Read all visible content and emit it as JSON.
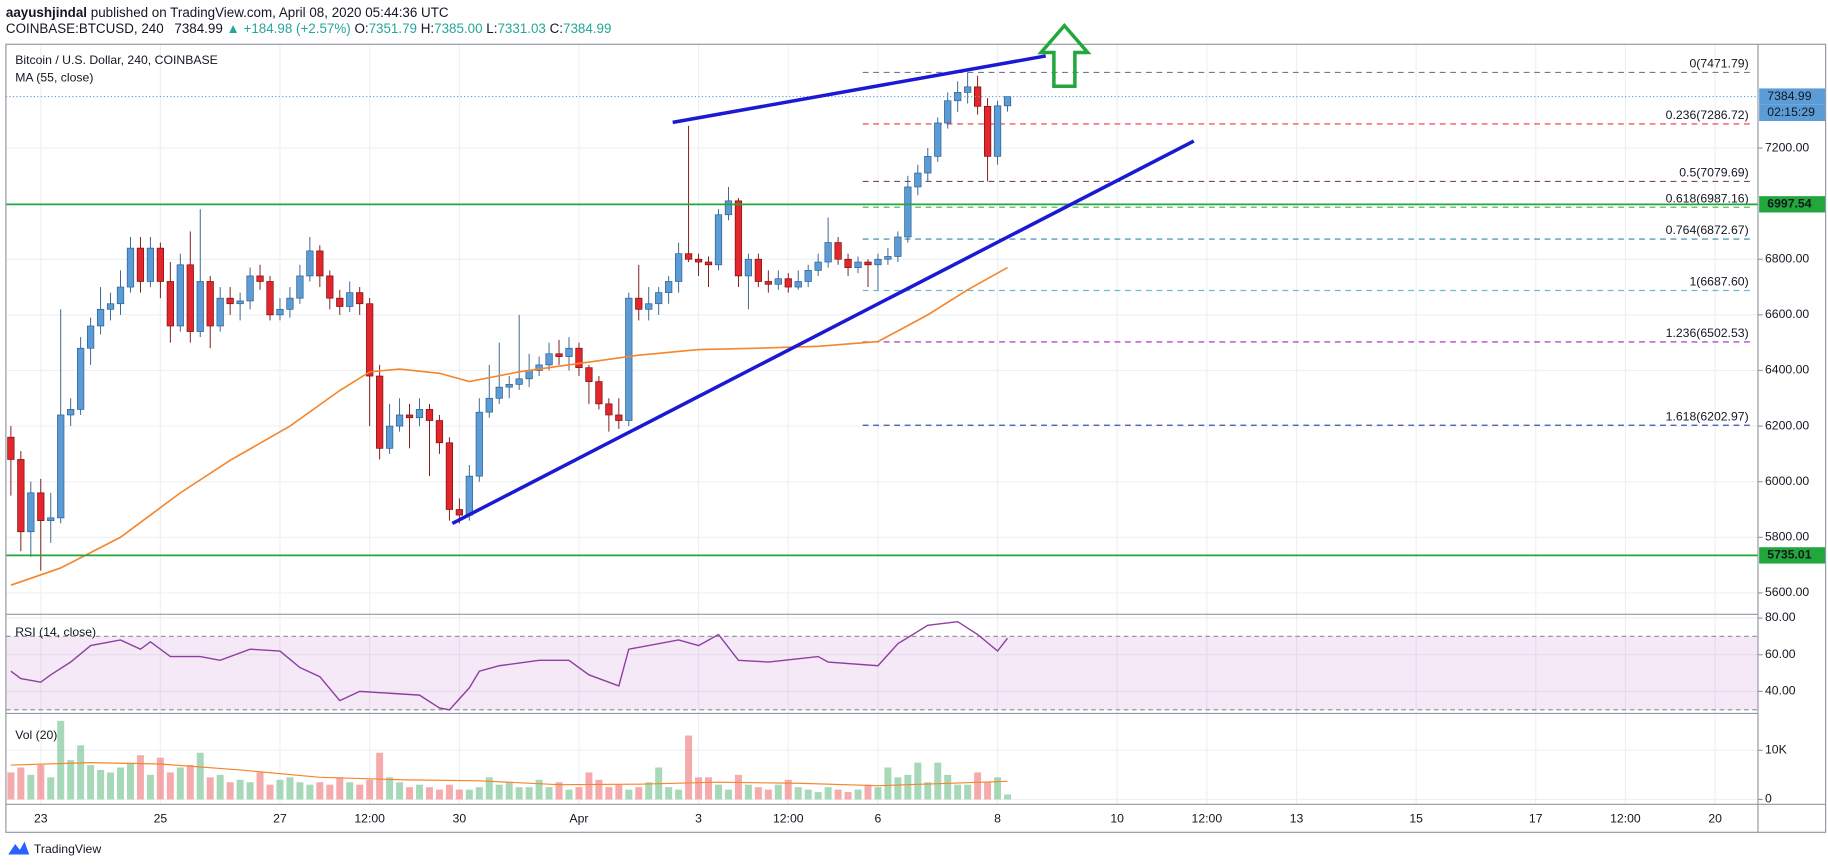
{
  "header": {
    "author": "aayushjindal",
    "published": "published on TradingView.com, April 08, 2020 05:44:36 UTC",
    "symbol": "COINBASE:BTCUSD, 240",
    "price": "7384.99",
    "change": "▲ +184.98 (+2.57%)",
    "ohlc_labels": [
      "O:",
      "H:",
      "L:",
      "C:"
    ],
    "ohlc_values": [
      "7351.79",
      "7385.00",
      "7331.03",
      "7384.99"
    ]
  },
  "chart_data": [
    {
      "type": "candlestick",
      "title": "Bitcoin / U.S. Dollar, 240, COINBASE",
      "x": [
        -3,
        -2,
        -1,
        0,
        1,
        2,
        3,
        4,
        5,
        6,
        7,
        8,
        9,
        10,
        11,
        12,
        13,
        14,
        15,
        16,
        17,
        18,
        19,
        20,
        21,
        22,
        23,
        24,
        25,
        26,
        27,
        28,
        29,
        30,
        31,
        32,
        33,
        34,
        35,
        36,
        37,
        38,
        39,
        40,
        41,
        42,
        43,
        44,
        45,
        46,
        47,
        48,
        49,
        50,
        51,
        52,
        53,
        54,
        55,
        56,
        57,
        58,
        59,
        60,
        61,
        62,
        63,
        64,
        65,
        66,
        67,
        68,
        69,
        70,
        71,
        72,
        73,
        74,
        75,
        76,
        77,
        78,
        79,
        80,
        81,
        82,
        83,
        84,
        85,
        86,
        87,
        88,
        89,
        90,
        91,
        92,
        93,
        94,
        95,
        96,
        97
      ],
      "ohlc": [
        [
          6160,
          6200,
          5950,
          6080
        ],
        [
          6080,
          6110,
          5750,
          5820
        ],
        [
          5820,
          6000,
          5730,
          5960
        ],
        [
          5960,
          6010,
          5680,
          5860
        ],
        [
          5860,
          5960,
          5780,
          5870
        ],
        [
          5870,
          6620,
          5850,
          6240
        ],
        [
          6240,
          6300,
          6200,
          6260
        ],
        [
          6260,
          6520,
          6240,
          6480
        ],
        [
          6480,
          6590,
          6420,
          6560
        ],
        [
          6560,
          6700,
          6530,
          6620
        ],
        [
          6620,
          6680,
          6580,
          6640
        ],
        [
          6640,
          6760,
          6600,
          6700
        ],
        [
          6700,
          6880,
          6680,
          6840
        ],
        [
          6840,
          6880,
          6680,
          6720
        ],
        [
          6720,
          6880,
          6700,
          6840
        ],
        [
          6840,
          6860,
          6660,
          6720
        ],
        [
          6720,
          6790,
          6500,
          6560
        ],
        [
          6560,
          6820,
          6540,
          6780
        ],
        [
          6780,
          6900,
          6500,
          6540
        ],
        [
          6540,
          6980,
          6520,
          6720
        ],
        [
          6720,
          6740,
          6480,
          6560
        ],
        [
          6560,
          6700,
          6540,
          6660
        ],
        [
          6660,
          6700,
          6600,
          6640
        ],
        [
          6640,
          6680,
          6580,
          6650
        ],
        [
          6650,
          6770,
          6620,
          6740
        ],
        [
          6740,
          6780,
          6690,
          6720
        ],
        [
          6720,
          6740,
          6580,
          6600
        ],
        [
          6600,
          6660,
          6580,
          6620
        ],
        [
          6620,
          6700,
          6590,
          6660
        ],
        [
          6660,
          6780,
          6640,
          6740
        ],
        [
          6740,
          6880,
          6720,
          6830
        ],
        [
          6830,
          6850,
          6700,
          6740
        ],
        [
          6740,
          6760,
          6620,
          6660
        ],
        [
          6660,
          6690,
          6600,
          6630
        ],
        [
          6630,
          6720,
          6610,
          6680
        ],
        [
          6680,
          6700,
          6600,
          6640
        ],
        [
          6640,
          6660,
          6200,
          6380
        ],
        [
          6380,
          6420,
          6080,
          6120
        ],
        [
          6120,
          6280,
          6100,
          6200
        ],
        [
          6200,
          6300,
          6180,
          6240
        ],
        [
          6240,
          6280,
          6120,
          6230
        ],
        [
          6230,
          6300,
          6200,
          6260
        ],
        [
          6260,
          6280,
          6020,
          6220
        ],
        [
          6220,
          6240,
          6100,
          6140
        ],
        [
          6140,
          6160,
          5860,
          5900
        ],
        [
          5900,
          5940,
          5850,
          5880
        ],
        [
          5880,
          6060,
          5860,
          6020
        ],
        [
          6020,
          6300,
          6000,
          6250
        ],
        [
          6250,
          6420,
          6230,
          6300
        ],
        [
          6300,
          6500,
          6280,
          6340
        ],
        [
          6340,
          6380,
          6300,
          6350
        ],
        [
          6350,
          6600,
          6330,
          6370
        ],
        [
          6370,
          6460,
          6340,
          6400
        ],
        [
          6400,
          6450,
          6380,
          6420
        ],
        [
          6420,
          6500,
          6400,
          6460
        ],
        [
          6460,
          6510,
          6420,
          6450
        ],
        [
          6450,
          6520,
          6400,
          6480
        ],
        [
          6480,
          6500,
          6380,
          6410
        ],
        [
          6410,
          6420,
          6280,
          6360
        ],
        [
          6360,
          6380,
          6260,
          6280
        ],
        [
          6280,
          6300,
          6180,
          6240
        ],
        [
          6240,
          6300,
          6190,
          6220
        ],
        [
          6220,
          6680,
          6200,
          6660
        ],
        [
          6660,
          6780,
          6580,
          6620
        ],
        [
          6620,
          6700,
          6580,
          6640
        ],
        [
          6640,
          6700,
          6600,
          6680
        ],
        [
          6680,
          6740,
          6640,
          6720
        ],
        [
          6720,
          6860,
          6680,
          6820
        ],
        [
          6820,
          7280,
          6790,
          6800
        ],
        [
          6800,
          6820,
          6740,
          6790
        ],
        [
          6790,
          6810,
          6700,
          6780
        ],
        [
          6780,
          6980,
          6760,
          6960
        ],
        [
          6960,
          7060,
          6940,
          7010
        ],
        [
          7010,
          7020,
          6700,
          6740
        ],
        [
          6740,
          6820,
          6620,
          6800
        ],
        [
          6800,
          6820,
          6700,
          6720
        ],
        [
          6720,
          6760,
          6680,
          6710
        ],
        [
          6710,
          6760,
          6690,
          6730
        ],
        [
          6730,
          6750,
          6680,
          6700
        ],
        [
          6700,
          6760,
          6690,
          6720
        ],
        [
          6720,
          6780,
          6700,
          6760
        ],
        [
          6760,
          6820,
          6740,
          6790
        ],
        [
          6790,
          6950,
          6770,
          6860
        ],
        [
          6860,
          6880,
          6780,
          6800
        ],
        [
          6800,
          6820,
          6740,
          6770
        ],
        [
          6770,
          6810,
          6750,
          6790
        ],
        [
          6790,
          6800,
          6700,
          6780
        ],
        [
          6780,
          6820,
          6690,
          6800
        ],
        [
          6800,
          6840,
          6780,
          6810
        ],
        [
          6810,
          6900,
          6790,
          6880
        ],
        [
          6880,
          7100,
          6860,
          7060
        ],
        [
          7060,
          7140,
          7030,
          7110
        ],
        [
          7110,
          7200,
          7080,
          7170
        ],
        [
          7170,
          7310,
          7150,
          7290
        ],
        [
          7290,
          7400,
          7270,
          7370
        ],
        [
          7370,
          7440,
          7330,
          7400
        ],
        [
          7400,
          7471.79,
          7360,
          7420
        ],
        [
          7420,
          7460,
          7320,
          7350
        ],
        [
          7350,
          7380,
          7080,
          7170
        ],
        [
          7170,
          7370,
          7140,
          7351.79
        ],
        [
          7351.79,
          7385,
          7331.03,
          7384.99
        ]
      ],
      "up_color": "#5b9cd6",
      "down_color": "#e2262b",
      "xlim": [
        -3.5,
        172.3
      ],
      "xticks": [
        {
          "value": 0,
          "label": "23"
        },
        {
          "value": 12,
          "label": "25"
        },
        {
          "value": 24,
          "label": "27"
        },
        {
          "value": 33,
          "label": "12:00"
        },
        {
          "value": 42,
          "label": "30"
        },
        {
          "value": 54,
          "label": "Apr"
        },
        {
          "value": 66,
          "label": "3"
        },
        {
          "value": 75,
          "label": "12:00"
        },
        {
          "value": 84,
          "label": "6"
        },
        {
          "value": 96,
          "label": "8"
        },
        {
          "value": 108,
          "label": "10"
        },
        {
          "value": 117,
          "label": "12:00"
        },
        {
          "value": 126,
          "label": "13"
        },
        {
          "value": 138,
          "label": "15"
        },
        {
          "value": 150,
          "label": "17"
        },
        {
          "value": 159,
          "label": "12:00"
        },
        {
          "value": 168,
          "label": "20"
        }
      ],
      "ylim": [
        5523,
        7573
      ],
      "yticks": [
        {
          "value": 5600,
          "label": "5600.00"
        },
        {
          "value": 5800,
          "label": "5800.00"
        },
        {
          "value": 6000,
          "label": "6000.00"
        },
        {
          "value": 6200,
          "label": "6200.00"
        },
        {
          "value": 6400,
          "label": "6400.00"
        },
        {
          "value": 6600,
          "label": "6600.00"
        },
        {
          "value": 6800,
          "label": "6800.00"
        },
        {
          "value": 7200,
          "label": "7200.00"
        }
      ],
      "grid": true,
      "series": [
        {
          "name": "MA (55, close)",
          "color": "#f5862b",
          "x": [
            -3,
            2,
            8,
            14,
            19,
            25,
            30,
            33,
            36,
            40,
            43,
            48,
            54,
            60,
            66,
            72,
            78,
            84,
            89,
            93,
            97
          ],
          "values": [
            5628,
            5690,
            5800,
            5960,
            6077,
            6200,
            6328,
            6395,
            6405,
            6390,
            6360,
            6395,
            6425,
            6455,
            6475,
            6480,
            6487,
            6504,
            6600,
            6690,
            6770
          ]
        }
      ],
      "levels": [
        {
          "value": 7471.79,
          "label": "0(7471.79)",
          "color": "#787b86"
        },
        {
          "value": 7286.72,
          "label": "0.236(7286.72)",
          "color": "#f23645"
        },
        {
          "value": 7079.69,
          "label": "0.5(7079.69)",
          "color": "#7a4b55"
        },
        {
          "value": 6987.16,
          "label": "0.618(6987.16)",
          "color": "#4caf50"
        },
        {
          "value": 6872.67,
          "label": "0.764(6872.67)",
          "color": "#2e86a8"
        },
        {
          "value": 6687.6,
          "label": "1(6687.60)",
          "color": "#6fb9cf"
        },
        {
          "value": 6502.53,
          "label": "1.236(6502.53)",
          "color": "#9c27b0"
        },
        {
          "value": 6202.97,
          "label": "1.618(6202.97)",
          "color": "#3f51b5"
        }
      ],
      "lines": [
        {
          "value": 6997.54,
          "color": "#21a73b"
        },
        {
          "value": 5735.01,
          "color": "#21a73b"
        }
      ],
      "last": {
        "value": 7384.99,
        "countdown": "02:15:29",
        "color": "#5b9cd6"
      }
    },
    {
      "type": "line",
      "title": "RSI (14, close)",
      "color": "#8e3fa1",
      "x": [
        -3,
        -2,
        0,
        1,
        3,
        5,
        8,
        10,
        11,
        13,
        16,
        18,
        21,
        24,
        26,
        28,
        30,
        32,
        35,
        38,
        40,
        41,
        43,
        44,
        46,
        50,
        53,
        55,
        58,
        59,
        64,
        66,
        68,
        70,
        73,
        78,
        79,
        84,
        86,
        89,
        92,
        94,
        96,
        97
      ],
      "values": [
        51,
        47,
        45,
        49,
        56,
        65,
        68,
        63,
        67,
        59,
        59,
        57,
        63,
        62,
        53,
        48,
        35,
        40,
        39,
        38,
        31,
        30,
        42,
        51,
        54,
        57,
        57,
        49,
        43,
        63,
        68,
        65,
        71,
        57,
        56,
        59,
        56,
        54,
        66,
        76,
        78,
        71,
        62,
        69
      ],
      "band": [
        30,
        70
      ],
      "band_color": "#9c27b0",
      "ylim": [
        28,
        82
      ],
      "yticks": [
        {
          "value": 40,
          "label": "40.00"
        },
        {
          "value": 60,
          "label": "60.00"
        },
        {
          "value": 80,
          "label": "80.00"
        }
      ]
    },
    {
      "type": "bar",
      "title": "Vol (20)",
      "values": [
        5500,
        6500,
        5000,
        7000,
        4500,
        16000,
        8000,
        11000,
        7000,
        6000,
        5500,
        6500,
        7500,
        9000,
        5000,
        8500,
        5500,
        6500,
        7000,
        9500,
        4500,
        5000,
        3500,
        4000,
        3500,
        5500,
        3000,
        4000,
        4500,
        3500,
        3000,
        3500,
        3000,
        4500,
        3500,
        3000,
        4000,
        9500,
        4500,
        3500,
        2500,
        3000,
        2500,
        2000,
        3000,
        2000,
        2000,
        2500,
        4500,
        3000,
        3500,
        2500,
        2500,
        4000,
        2500,
        3500,
        2000,
        2500,
        5500,
        4000,
        2500,
        3000,
        2000,
        2500,
        3500,
        6500,
        2500,
        2000,
        13000,
        4500,
        4500,
        3000,
        2000,
        5000,
        3000,
        2500,
        2000,
        3000,
        4000,
        2500,
        2000,
        1500,
        2500,
        2000,
        1500,
        2000,
        3000,
        2500,
        6500,
        4500,
        5000,
        7500,
        3500,
        7500,
        5000,
        3000,
        3000,
        5500,
        3500,
        4500,
        1000
      ],
      "up_color": "#6cc08b",
      "down_color": "#ef7373",
      "ylim": [
        -1000,
        17500
      ],
      "yticks": [
        0,
        {
          "value": 10000,
          "label": "10K"
        }
      ],
      "ma": {
        "color": "#f5862b",
        "x": [
          -3,
          5,
          12,
          20,
          28,
          36,
          44,
          52,
          60,
          68,
          76,
          84,
          90,
          97
        ],
        "values": [
          7000,
          7500,
          7200,
          6000,
          4500,
          4000,
          3800,
          3000,
          3100,
          3500,
          3300,
          2800,
          3200,
          3700
        ]
      }
    }
  ],
  "footer": {
    "brand": "TradingView"
  }
}
